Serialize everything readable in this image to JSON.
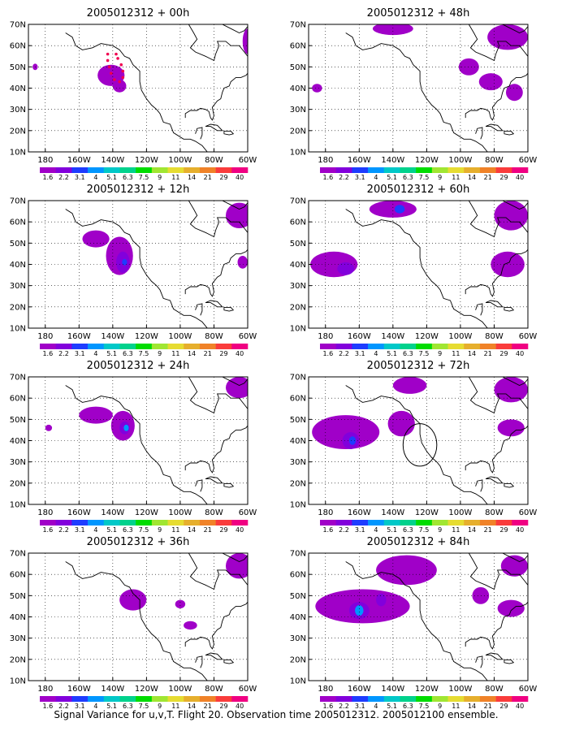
{
  "caption": "Signal Variance for u,v,T. Flight 20. Observation time 2005012312. 2005012100 ensemble.",
  "colorbar": {
    "labels": [
      "1.6",
      "2.2",
      "3.1",
      "4",
      "5.1",
      "6.3",
      "7.5",
      "9",
      "11",
      "14",
      "21",
      "29",
      "40"
    ],
    "colors": [
      "#a000c8",
      "#8200dc",
      "#1e3cff",
      "#0096ff",
      "#00c8c8",
      "#00d28c",
      "#00dc00",
      "#a0e632",
      "#e6dc32",
      "#e6af2d",
      "#f08228",
      "#fa3c3c",
      "#f00082"
    ]
  },
  "contour_colors": {
    "level1": "#a000c8",
    "level2": "#8200dc",
    "level3": "#1e3cff",
    "level4": "#0096ff",
    "level5": "#00c8c8"
  },
  "chart_data": {
    "type": "heatmap",
    "x_ticks": [
      "180",
      "160W",
      "140W",
      "120W",
      "100W",
      "80W",
      "60W"
    ],
    "y_ticks": [
      "10N",
      "20N",
      "30N",
      "40N",
      "50N",
      "60N",
      "70N"
    ],
    "xlim": [
      -190,
      -60
    ],
    "ylim": [
      10,
      70
    ],
    "grid": true,
    "panels": [
      {
        "title": "2005012312 + 00h",
        "blobs": [
          {
            "lon": -141,
            "lat": 46,
            "rlon": 8,
            "rlat": 5,
            "level": 1
          },
          {
            "lon": -136,
            "lat": 41,
            "rlon": 4,
            "rlat": 3,
            "level": 1
          },
          {
            "lon": -186,
            "lat": 50,
            "rlon": 1.5,
            "rlat": 1.5,
            "level": 1
          },
          {
            "lon": -60,
            "lat": 62,
            "rlon": 3,
            "rlat": 6,
            "level": 1
          }
        ],
        "flight_dots": [
          [
            -143,
            56
          ],
          [
            -143,
            53
          ],
          [
            -142,
            50
          ],
          [
            -141,
            47
          ],
          [
            -139,
            44
          ],
          [
            -136,
            43
          ],
          [
            -134,
            45
          ],
          [
            -134,
            48
          ],
          [
            -135,
            51
          ],
          [
            -137,
            54
          ],
          [
            -138,
            56
          ]
        ],
        "circles": []
      },
      {
        "title": "2005012312 + 48h",
        "blobs": [
          {
            "lon": -140,
            "lat": 68,
            "rlon": 12,
            "rlat": 3,
            "level": 1
          },
          {
            "lon": -72,
            "lat": 64,
            "rlon": 12,
            "rlat": 6,
            "level": 1
          },
          {
            "lon": -95,
            "lat": 50,
            "rlon": 6,
            "rlat": 4,
            "level": 1
          },
          {
            "lon": -82,
            "lat": 43,
            "rlon": 7,
            "rlat": 4,
            "level": 1
          },
          {
            "lon": -68,
            "lat": 38,
            "rlon": 5,
            "rlat": 4,
            "level": 1
          },
          {
            "lon": -185,
            "lat": 40,
            "rlon": 3,
            "rlat": 2,
            "level": 1
          }
        ],
        "flight_dots": [],
        "circles": []
      },
      {
        "title": "2005012312 + 12h",
        "blobs": [
          {
            "lon": -150,
            "lat": 52,
            "rlon": 8,
            "rlat": 4,
            "level": 1
          },
          {
            "lon": -136,
            "lat": 44,
            "rlon": 8,
            "rlat": 9,
            "level": 1
          },
          {
            "lon": -134,
            "lat": 41,
            "rlon": 4,
            "rlat": 5,
            "level": 2
          },
          {
            "lon": -133,
            "lat": 41,
            "rlon": 1.5,
            "rlat": 1.5,
            "level": 3
          },
          {
            "lon": -65,
            "lat": 63,
            "rlon": 8,
            "rlat": 6,
            "level": 1
          },
          {
            "lon": -63,
            "lat": 41,
            "rlon": 3,
            "rlat": 3,
            "level": 1
          }
        ],
        "flight_dots": [],
        "circles": []
      },
      {
        "title": "2005012312 + 60h",
        "blobs": [
          {
            "lon": -140,
            "lat": 66,
            "rlon": 14,
            "rlat": 4,
            "level": 1
          },
          {
            "lon": -136,
            "lat": 66,
            "rlon": 3,
            "rlat": 2,
            "level": 3
          },
          {
            "lon": -175,
            "lat": 40,
            "rlon": 14,
            "rlat": 6,
            "level": 1
          },
          {
            "lon": -168,
            "lat": 38,
            "rlon": 5,
            "rlat": 3,
            "level": 2
          },
          {
            "lon": -70,
            "lat": 63,
            "rlon": 10,
            "rlat": 7,
            "level": 1
          },
          {
            "lon": -72,
            "lat": 40,
            "rlon": 10,
            "rlat": 6,
            "level": 1
          }
        ],
        "flight_dots": [],
        "circles": []
      },
      {
        "title": "2005012312 + 24h",
        "blobs": [
          {
            "lon": -150,
            "lat": 52,
            "rlon": 10,
            "rlat": 4,
            "level": 1
          },
          {
            "lon": -134,
            "lat": 47,
            "rlon": 7,
            "rlat": 7,
            "level": 1
          },
          {
            "lon": -133,
            "lat": 46,
            "rlon": 3,
            "rlat": 3,
            "level": 2
          },
          {
            "lon": -132,
            "lat": 46,
            "rlon": 1.5,
            "rlat": 1.5,
            "level": 4
          },
          {
            "lon": -178,
            "lat": 46,
            "rlon": 2,
            "rlat": 1.5,
            "level": 1
          },
          {
            "lon": -65,
            "lat": 65,
            "rlon": 8,
            "rlat": 5,
            "level": 1
          }
        ],
        "flight_dots": [],
        "circles": []
      },
      {
        "title": "2005012312 + 72h",
        "blobs": [
          {
            "lon": -168,
            "lat": 44,
            "rlon": 20,
            "rlat": 8,
            "level": 1
          },
          {
            "lon": -165,
            "lat": 40,
            "rlon": 5,
            "rlat": 4,
            "level": 2
          },
          {
            "lon": -164,
            "lat": 40,
            "rlon": 2,
            "rlat": 2,
            "level": 3
          },
          {
            "lon": -135,
            "lat": 48,
            "rlon": 8,
            "rlat": 6,
            "level": 1
          },
          {
            "lon": -130,
            "lat": 66,
            "rlon": 10,
            "rlat": 4,
            "level": 1
          },
          {
            "lon": -70,
            "lat": 64,
            "rlon": 10,
            "rlat": 6,
            "level": 1
          },
          {
            "lon": -70,
            "lat": 46,
            "rlon": 8,
            "rlat": 4,
            "level": 1
          }
        ],
        "flight_dots": [],
        "circles": [
          {
            "lon": -124,
            "lat": 38,
            "rlon": 10,
            "rlat": 10
          }
        ]
      },
      {
        "title": "2005012312 + 36h",
        "blobs": [
          {
            "lon": -128,
            "lat": 48,
            "rlon": 8,
            "rlat": 5,
            "level": 1
          },
          {
            "lon": -100,
            "lat": 46,
            "rlon": 3,
            "rlat": 2,
            "level": 1
          },
          {
            "lon": -94,
            "lat": 36,
            "rlon": 4,
            "rlat": 2,
            "level": 1
          },
          {
            "lon": -65,
            "lat": 64,
            "rlon": 8,
            "rlat": 6,
            "level": 1
          }
        ],
        "flight_dots": [],
        "circles": []
      },
      {
        "title": "2005012312 + 84h",
        "blobs": [
          {
            "lon": -158,
            "lat": 45,
            "rlon": 28,
            "rlat": 8,
            "level": 1
          },
          {
            "lon": -160,
            "lat": 43,
            "rlon": 6,
            "rlat": 4,
            "level": 2
          },
          {
            "lon": -160,
            "lat": 43,
            "rlon": 2.5,
            "rlat": 2.5,
            "level": 4
          },
          {
            "lon": -147,
            "lat": 48,
            "rlon": 3,
            "rlat": 3,
            "level": 2
          },
          {
            "lon": -132,
            "lat": 62,
            "rlon": 18,
            "rlat": 7,
            "level": 1
          },
          {
            "lon": -88,
            "lat": 50,
            "rlon": 5,
            "rlat": 4,
            "level": 1
          },
          {
            "lon": -68,
            "lat": 64,
            "rlon": 8,
            "rlat": 5,
            "level": 1
          },
          {
            "lon": -70,
            "lat": 44,
            "rlon": 8,
            "rlat": 4,
            "level": 1
          }
        ],
        "flight_dots": [],
        "circles": []
      }
    ]
  }
}
